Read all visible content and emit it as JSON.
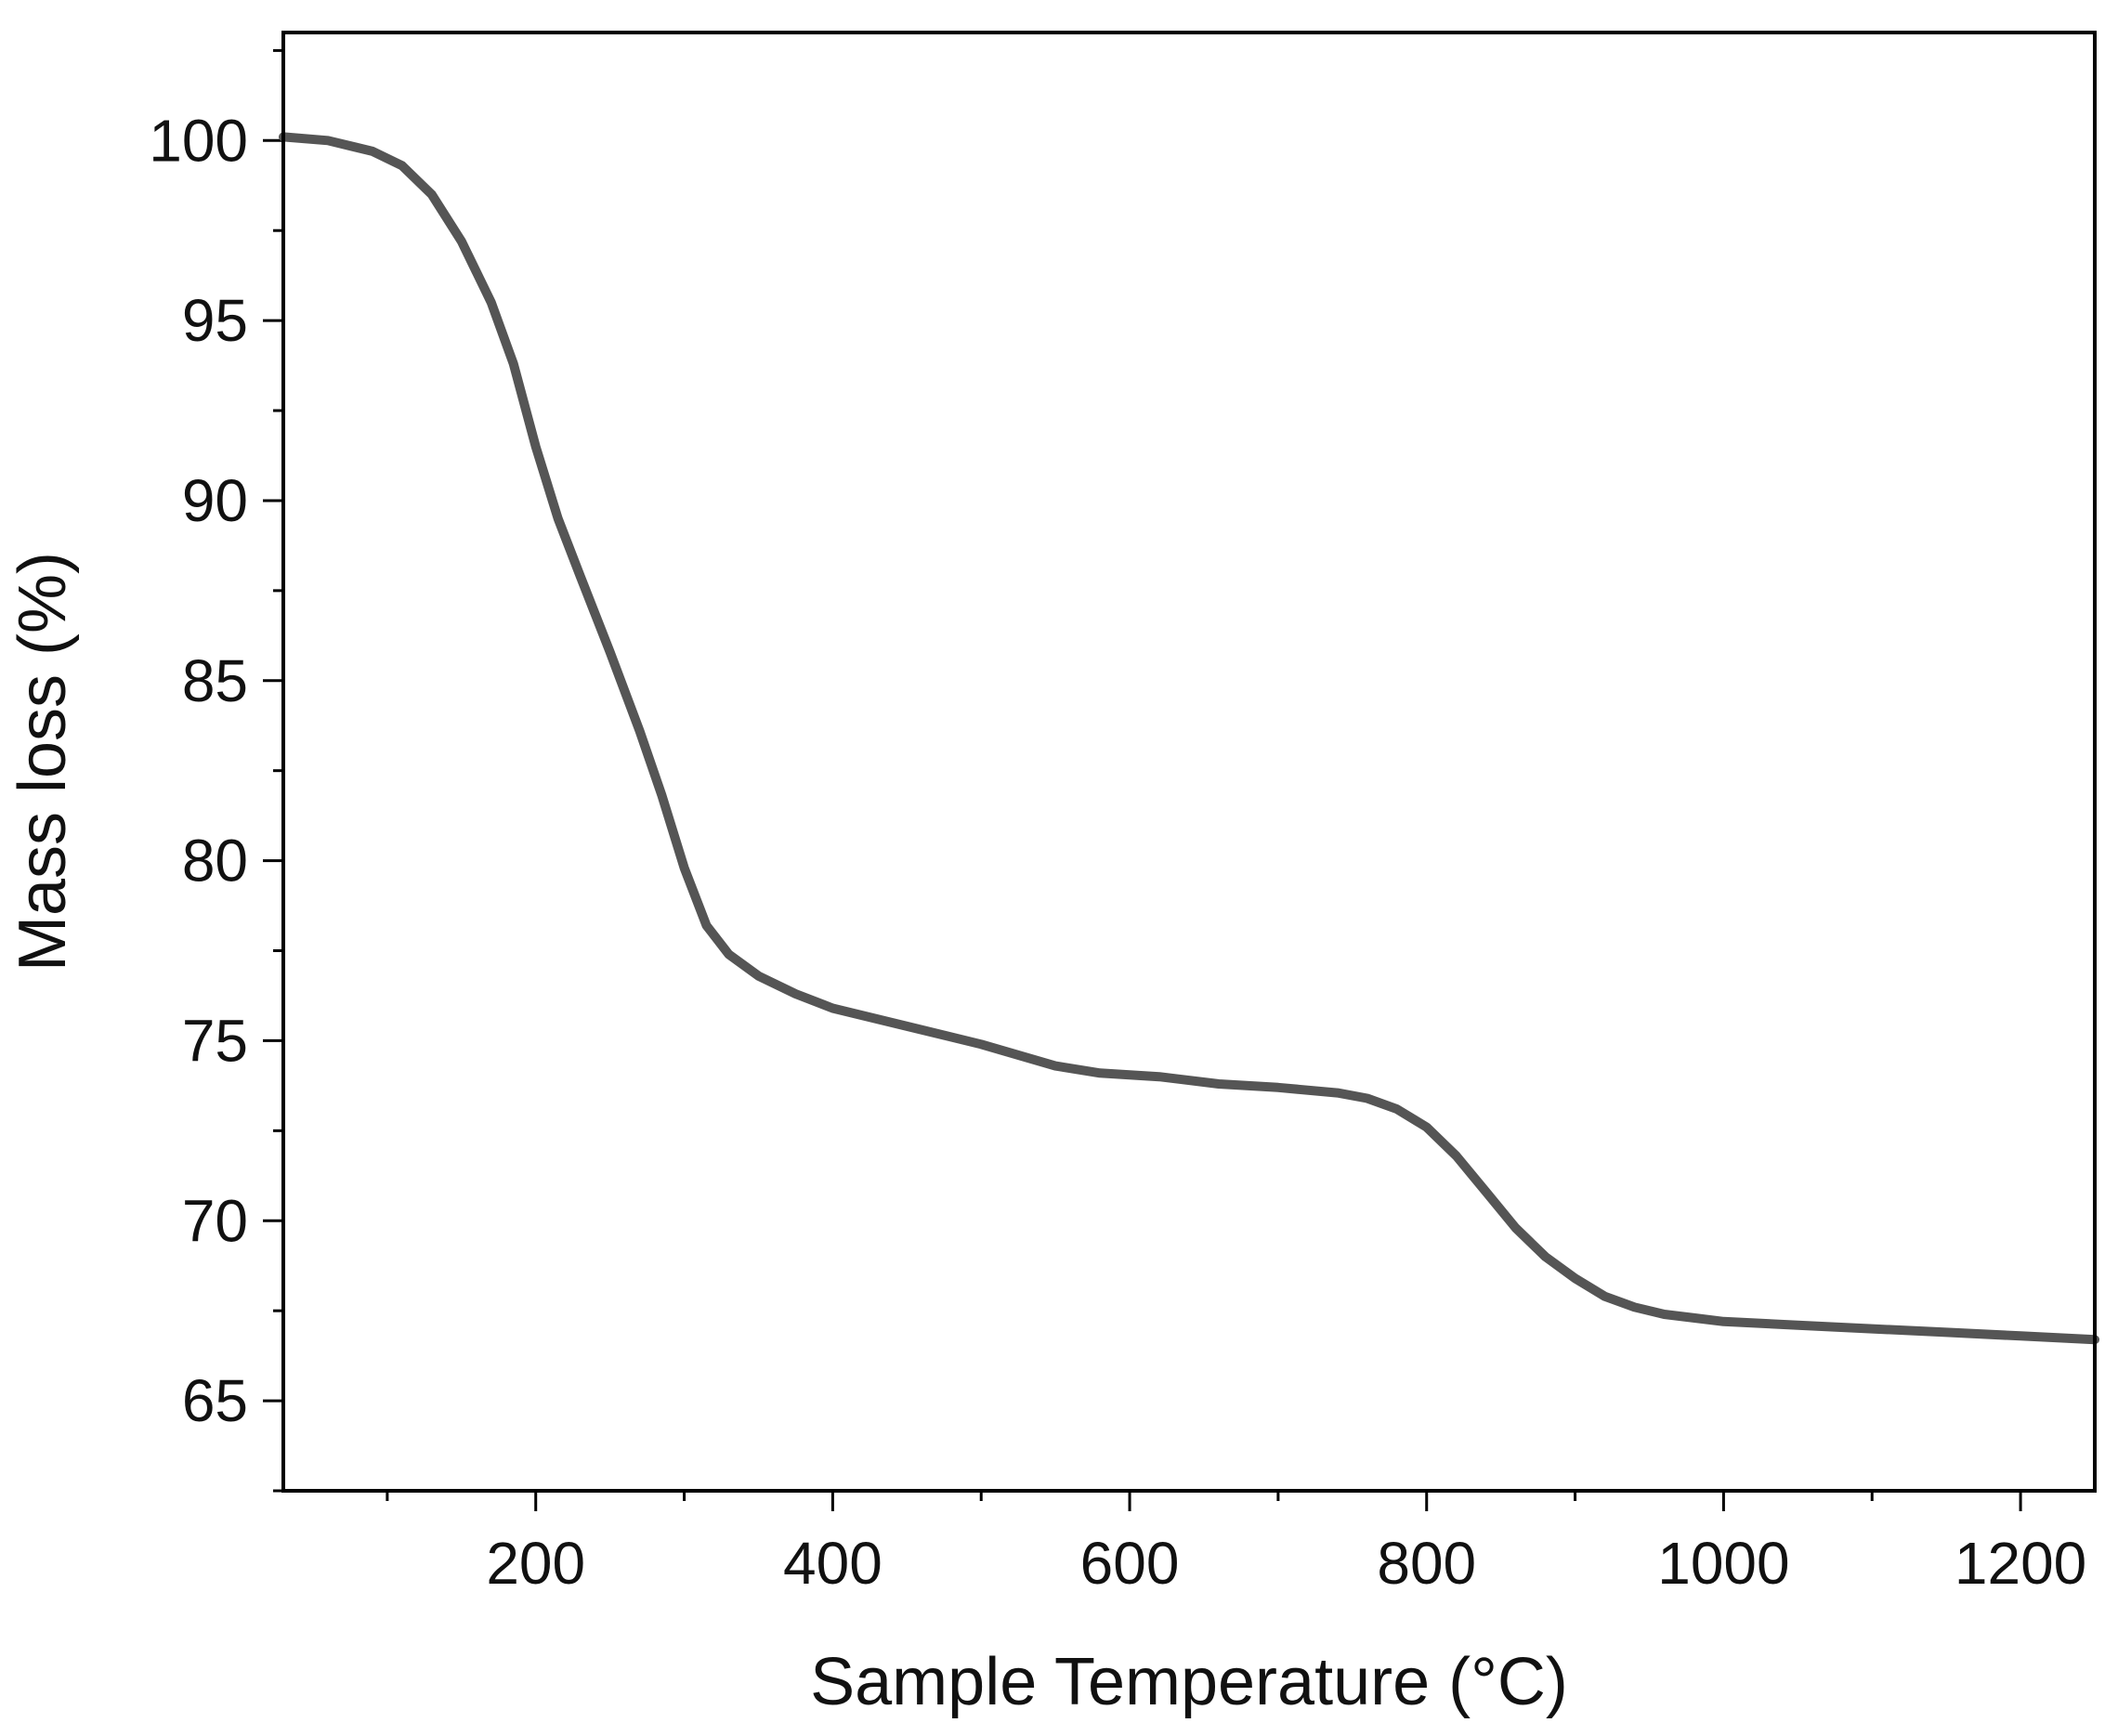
{
  "chart_data": {
    "type": "line",
    "title": "",
    "xlabel": "Sample Temperature (°C)",
    "ylabel": "Mass loss (%)",
    "xlim": [
      30,
      1250
    ],
    "ylim": [
      62.5,
      103
    ],
    "xticks": [
      200,
      400,
      600,
      800,
      1000,
      1200
    ],
    "xtick_labels": [
      "200",
      "400",
      "600",
      "800",
      "1000",
      "1200"
    ],
    "yticks": [
      65,
      70,
      75,
      80,
      85,
      90,
      95,
      100
    ],
    "ytick_labels": [
      "65",
      "70",
      "75",
      "80",
      "85",
      "90",
      "95",
      "100"
    ],
    "x_minor_step": 100,
    "y_minor_step": 2.5,
    "grid": false,
    "legend": "none",
    "line_color": "#555555",
    "series": [
      {
        "x": [
          30,
          60,
          90,
          110,
          130,
          150,
          170,
          185,
          200,
          215,
          230,
          250,
          270,
          285,
          300,
          315,
          330,
          350,
          375,
          400,
          450,
          500,
          550,
          580,
          620,
          660,
          700,
          740,
          760,
          780,
          800,
          820,
          840,
          860,
          880,
          900,
          920,
          940,
          960,
          980,
          1000,
          1050,
          1100,
          1150,
          1200,
          1250
        ],
        "y": [
          100.1,
          100.0,
          99.7,
          99.3,
          98.5,
          97.2,
          95.5,
          93.8,
          91.5,
          89.5,
          87.9,
          85.8,
          83.6,
          81.8,
          79.8,
          78.2,
          77.4,
          76.8,
          76.3,
          75.9,
          75.4,
          74.9,
          74.3,
          74.1,
          74.0,
          73.8,
          73.7,
          73.55,
          73.4,
          73.1,
          72.6,
          71.8,
          70.8,
          69.8,
          69.0,
          68.4,
          67.9,
          67.6,
          67.4,
          67.3,
          67.2,
          67.1,
          67.0,
          66.9,
          66.8,
          66.7
        ]
      }
    ]
  }
}
